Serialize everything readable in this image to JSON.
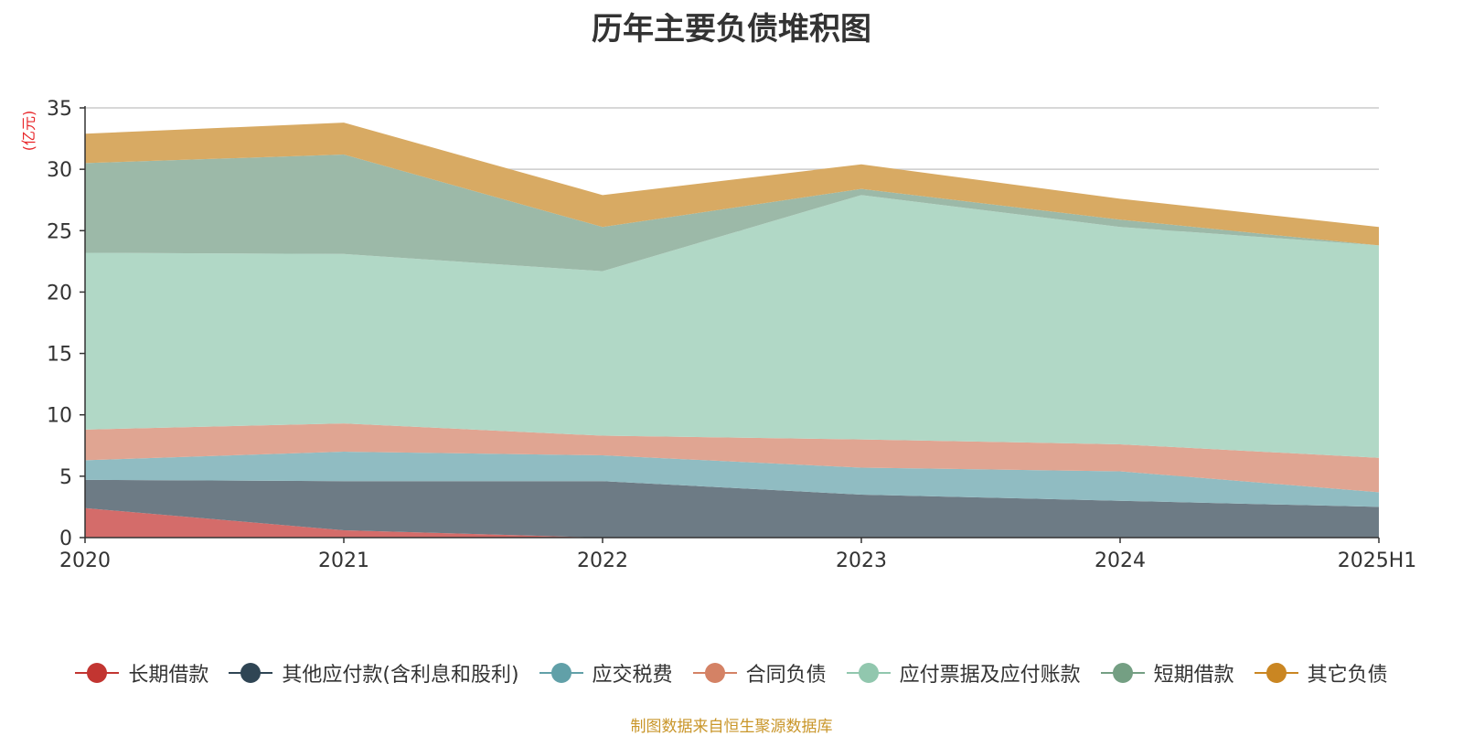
{
  "title": "历年主要负债堆积图",
  "source": "制图数据来自恒生聚源数据库",
  "colors": {
    "axis": "#333333",
    "grid": "#cccccc",
    "unit_label": "#e8262a"
  },
  "chart_data": {
    "type": "area",
    "stacked": true,
    "title": "历年主要负债堆积图",
    "ylabel": "(亿元)",
    "xlabel": "",
    "categories": [
      "2020",
      "2021",
      "2022",
      "2023",
      "2024",
      "2025H1"
    ],
    "ylim": [
      0,
      35
    ],
    "yticks": [
      0,
      5,
      10,
      15,
      20,
      25,
      30,
      35
    ],
    "grid": true,
    "legend_position": "bottom",
    "series": [
      {
        "name": "长期借款",
        "color": "#c23531",
        "fill": "#d46c6a",
        "values": [
          2.4,
          0.6,
          0.0,
          0.0,
          0.0,
          0.0
        ]
      },
      {
        "name": "其他应付款(含利息和股利)",
        "color": "#2f4554",
        "fill": "#6d7b85",
        "values": [
          2.3,
          4.0,
          4.6,
          3.5,
          3.0,
          2.5
        ]
      },
      {
        "name": "应交税费",
        "color": "#61a0a8",
        "fill": "#90bcc2",
        "values": [
          1.6,
          2.4,
          2.1,
          2.2,
          2.4,
          1.2
        ]
      },
      {
        "name": "合同负债",
        "color": "#d48265",
        "fill": "#e0a592",
        "values": [
          2.5,
          2.3,
          1.6,
          2.3,
          2.2,
          2.8
        ]
      },
      {
        "name": "应付票据及应付账款",
        "color": "#91c7ae",
        "fill": "#b1d8c6",
        "values": [
          14.4,
          13.8,
          13.4,
          19.9,
          17.7,
          17.3
        ]
      },
      {
        "name": "短期借款",
        "color": "#749f83",
        "fill": "#9cb9a8",
        "values": [
          7.3,
          8.1,
          3.6,
          0.5,
          0.6,
          0.0
        ]
      },
      {
        "name": "其它负债",
        "color": "#ca8622",
        "fill": "#d8aa63",
        "values": [
          2.4,
          2.6,
          2.6,
          2.0,
          1.7,
          1.5
        ]
      }
    ]
  }
}
